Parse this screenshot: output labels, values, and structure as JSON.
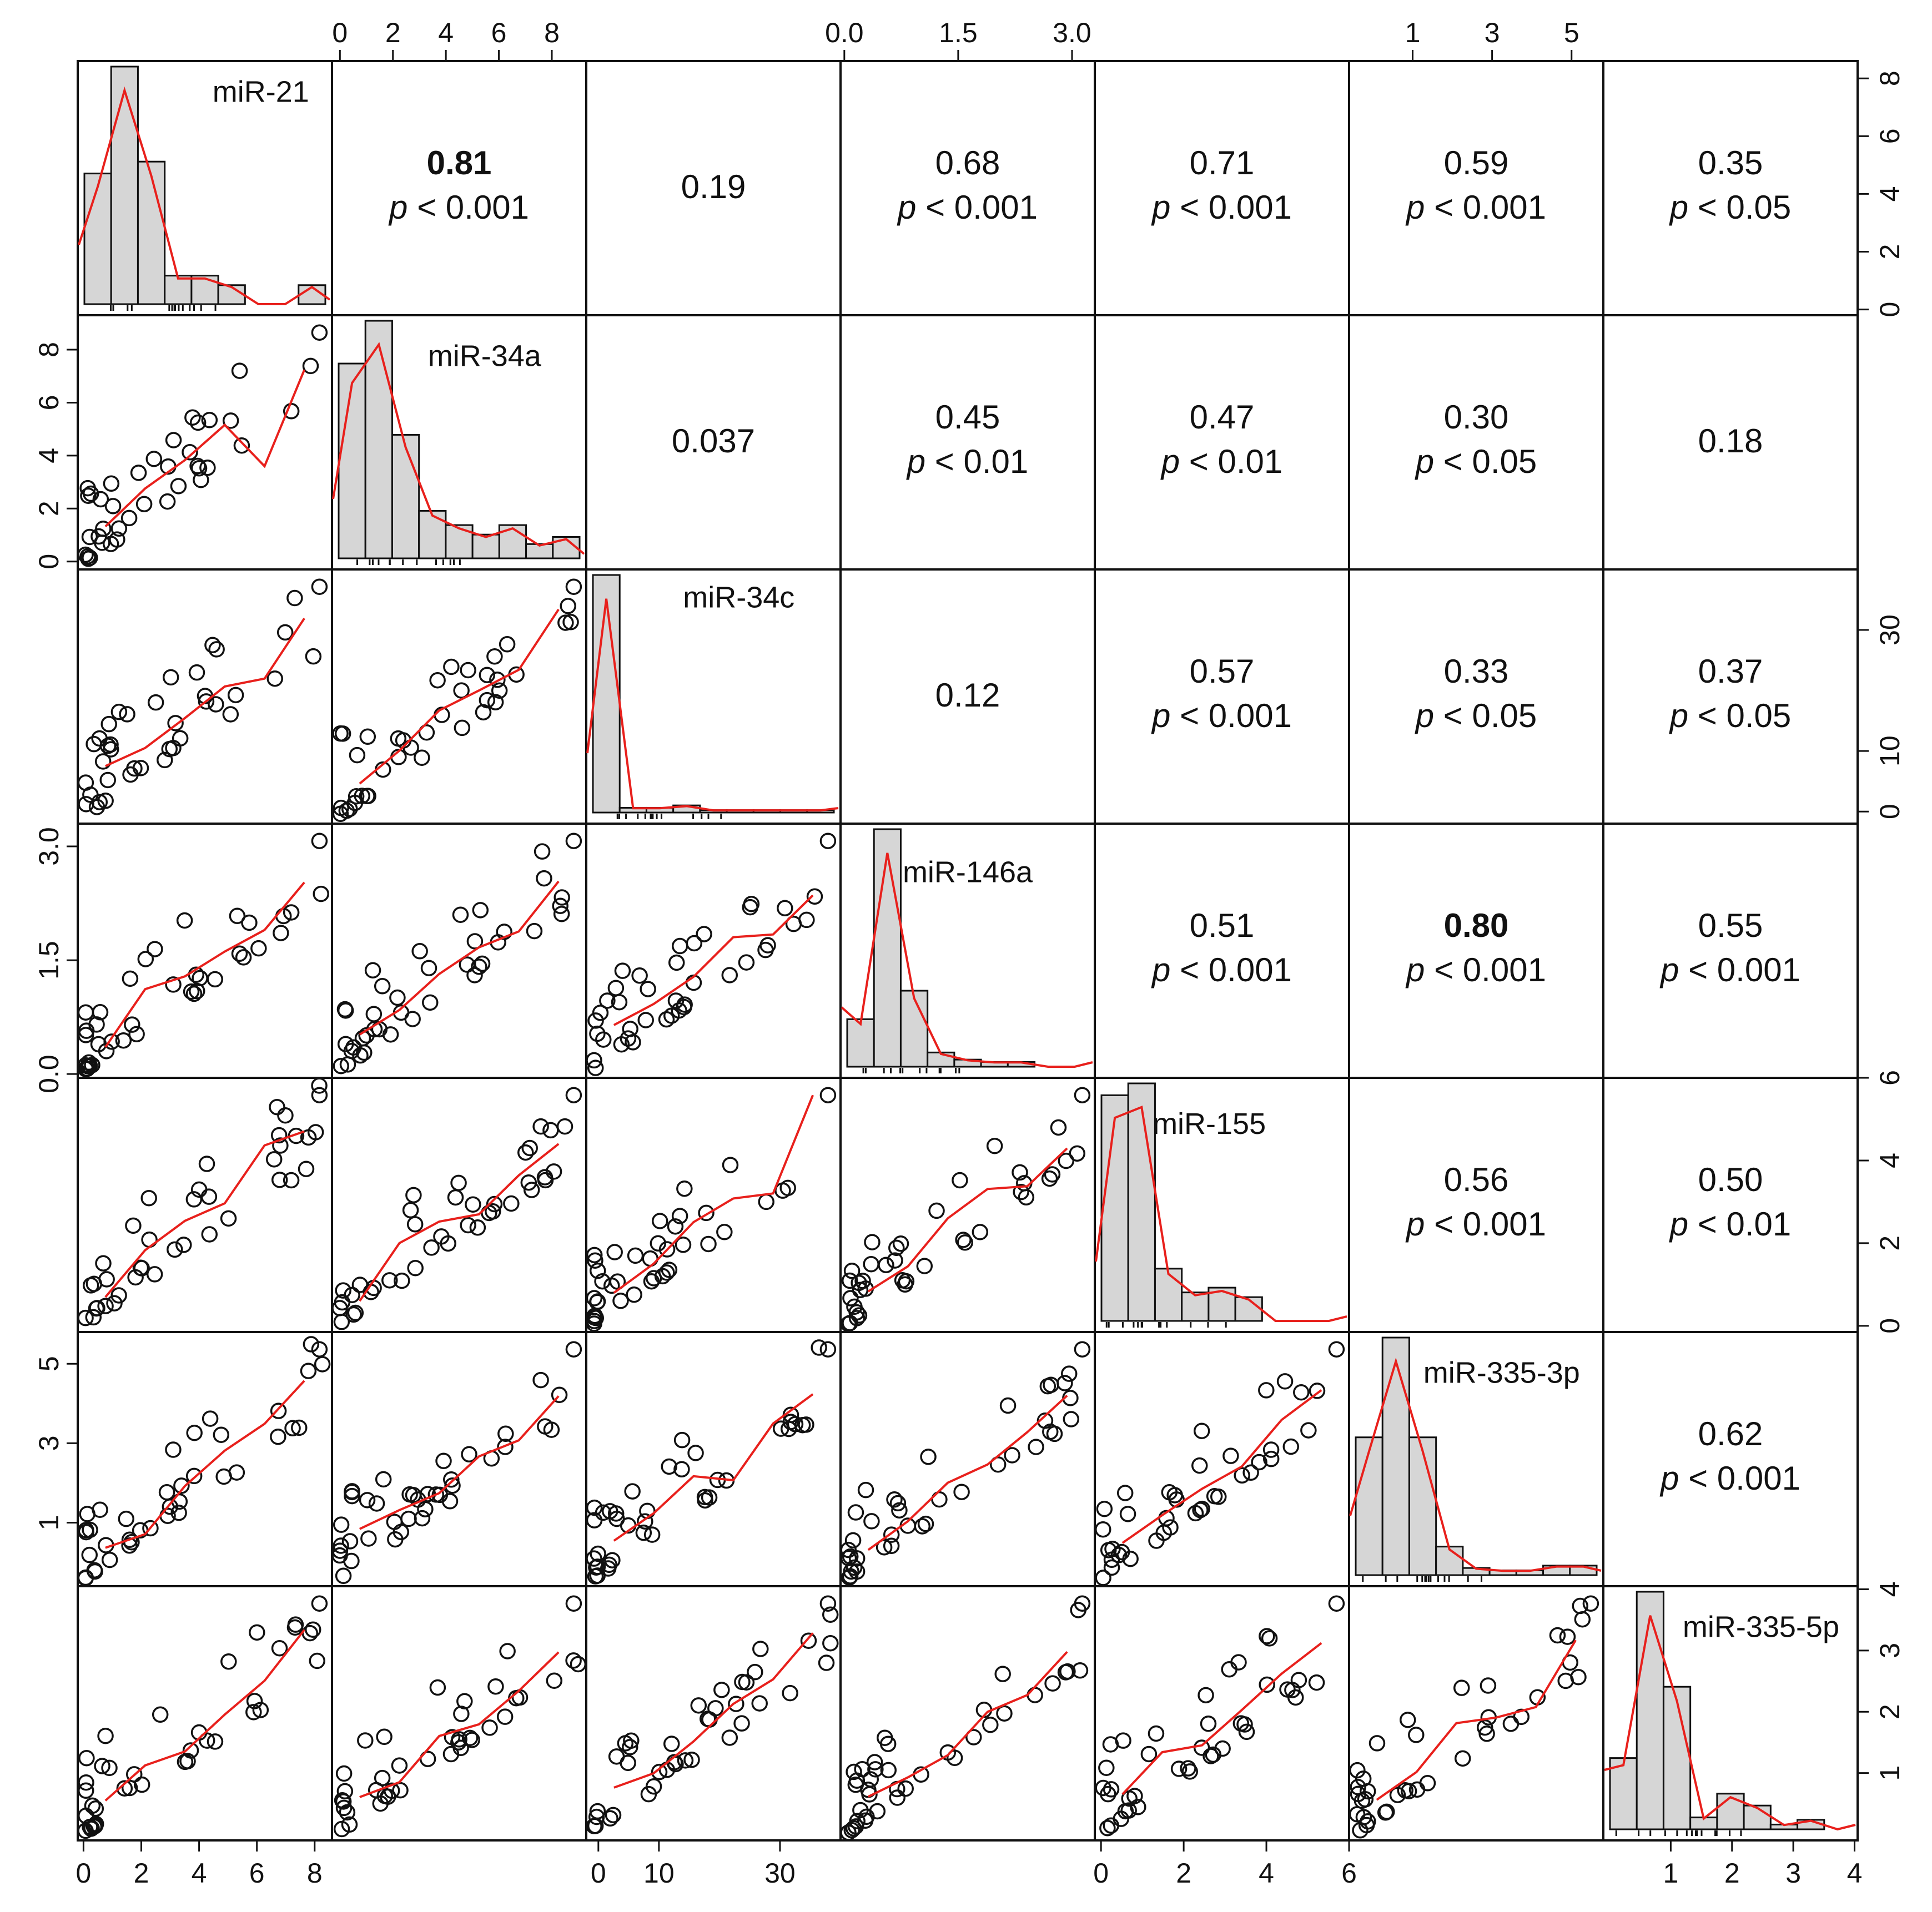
{
  "chart_data": {
    "type": "scatter-matrix",
    "variables": [
      "miR-21",
      "miR-34a",
      "miR-34c",
      "miR-146a",
      "miR-155",
      "miR-335-3p",
      "miR-335-5p"
    ],
    "panels": {
      "scatter_points": "lower triangle: pairwise scatter with red LOESS smooth",
      "histograms": "diagonal: histogram with red density curve"
    },
    "correlations": [
      {
        "row": 0,
        "col": 1,
        "r": "0.81",
        "p": "< 0.001",
        "bold": true
      },
      {
        "row": 0,
        "col": 2,
        "r": "0.19",
        "p": null,
        "bold": false
      },
      {
        "row": 0,
        "col": 3,
        "r": "0.68",
        "p": "< 0.001",
        "bold": false
      },
      {
        "row": 0,
        "col": 4,
        "r": "0.71",
        "p": "< 0.001",
        "bold": false
      },
      {
        "row": 0,
        "col": 5,
        "r": "0.59",
        "p": "< 0.001",
        "bold": false
      },
      {
        "row": 0,
        "col": 6,
        "r": "0.35",
        "p": "< 0.05",
        "bold": false
      },
      {
        "row": 1,
        "col": 2,
        "r": "0.037",
        "p": null,
        "bold": false
      },
      {
        "row": 1,
        "col": 3,
        "r": "0.45",
        "p": "< 0.01",
        "bold": false
      },
      {
        "row": 1,
        "col": 4,
        "r": "0.47",
        "p": "< 0.01",
        "bold": false
      },
      {
        "row": 1,
        "col": 5,
        "r": "0.30",
        "p": "< 0.05",
        "bold": false
      },
      {
        "row": 1,
        "col": 6,
        "r": "0.18",
        "p": null,
        "bold": false
      },
      {
        "row": 2,
        "col": 3,
        "r": "0.12",
        "p": null,
        "bold": false
      },
      {
        "row": 2,
        "col": 4,
        "r": "0.57",
        "p": "< 0.001",
        "bold": false
      },
      {
        "row": 2,
        "col": 5,
        "r": "0.33",
        "p": "< 0.05",
        "bold": false
      },
      {
        "row": 2,
        "col": 6,
        "r": "0.37",
        "p": "< 0.05",
        "bold": false
      },
      {
        "row": 3,
        "col": 4,
        "r": "0.51",
        "p": "< 0.001",
        "bold": false
      },
      {
        "row": 3,
        "col": 5,
        "r": "0.80",
        "p": "< 0.001",
        "bold": true
      },
      {
        "row": 3,
        "col": 6,
        "r": "0.55",
        "p": "< 0.001",
        "bold": false
      },
      {
        "row": 4,
        "col": 5,
        "r": "0.56",
        "p": "< 0.001",
        "bold": false
      },
      {
        "row": 4,
        "col": 6,
        "r": "0.50",
        "p": "< 0.01",
        "bold": false
      },
      {
        "row": 5,
        "col": 6,
        "r": "0.62",
        "p": "< 0.001",
        "bold": false
      }
    ],
    "p_prefix": "p",
    "axes": {
      "top": [
        {
          "col": 1,
          "ticks": [
            "0",
            "2",
            "4",
            "6",
            "8"
          ],
          "values": [
            0,
            2,
            4,
            6,
            8
          ],
          "range": [
            -0.3,
            9.3
          ]
        },
        {
          "col": 3,
          "ticks": [
            "0.0",
            "1.5",
            "3.0"
          ],
          "values": [
            0,
            1.5,
            3.0
          ],
          "range": [
            -0.05,
            3.3
          ]
        },
        {
          "col": 5,
          "ticks": [
            "1",
            "3",
            "5"
          ],
          "values": [
            1,
            3,
            5
          ],
          "range": [
            -0.6,
            5.8
          ]
        }
      ],
      "bottom": [
        {
          "col": 0,
          "ticks": [
            "0",
            "2",
            "4",
            "6",
            "8"
          ],
          "values": [
            0,
            2,
            4,
            6,
            8
          ],
          "range": [
            -0.2,
            8.6
          ]
        },
        {
          "col": 2,
          "ticks": [
            "0",
            "10",
            "30"
          ],
          "values": [
            0,
            10,
            30
          ],
          "range": [
            -2,
            40
          ]
        },
        {
          "col": 4,
          "ticks": [
            "0",
            "2",
            "4",
            "6"
          ],
          "values": [
            0,
            2,
            4,
            6
          ],
          "range": [
            -0.15,
            6.0
          ]
        },
        {
          "col": 6,
          "ticks": [
            "1",
            "2",
            "3",
            "4"
          ],
          "values": [
            1,
            2,
            3,
            4
          ],
          "range": [
            -0.1,
            4.05
          ]
        }
      ],
      "left": [
        {
          "row": 1,
          "ticks": [
            "0",
            "2",
            "4",
            "6",
            "8"
          ],
          "values": [
            0,
            2,
            4,
            6,
            8
          ],
          "range": [
            -0.3,
            9.3
          ]
        },
        {
          "row": 3,
          "ticks": [
            "0.0",
            "1.5",
            "3.0"
          ],
          "values": [
            0,
            1.5,
            3.0
          ],
          "range": [
            -0.05,
            3.3
          ]
        },
        {
          "row": 5,
          "ticks": [
            "1",
            "3",
            "5"
          ],
          "values": [
            1,
            3,
            5
          ],
          "range": [
            -0.6,
            5.8
          ]
        }
      ],
      "right": [
        {
          "row": 0,
          "ticks": [
            "0",
            "2",
            "4",
            "6",
            "8"
          ],
          "values": [
            0,
            2,
            4,
            6,
            8
          ],
          "range": [
            -0.2,
            8.6
          ]
        },
        {
          "row": 2,
          "ticks": [
            "0",
            "10",
            "30"
          ],
          "values": [
            0,
            10,
            30
          ],
          "range": [
            -2,
            40
          ]
        },
        {
          "row": 4,
          "ticks": [
            "0",
            "2",
            "4",
            "6"
          ],
          "values": [
            0,
            2,
            4,
            6
          ],
          "range": [
            -0.15,
            6.0
          ]
        },
        {
          "row": 6,
          "ticks": [
            "1",
            "2",
            "3",
            "4"
          ],
          "values": [
            1,
            2,
            3,
            4
          ],
          "range": [
            -0.1,
            4.05
          ]
        }
      ]
    },
    "colors": {
      "smooth": "#e8201c",
      "hist_fill": "#d6d6d6",
      "frame": "#111111"
    }
  }
}
